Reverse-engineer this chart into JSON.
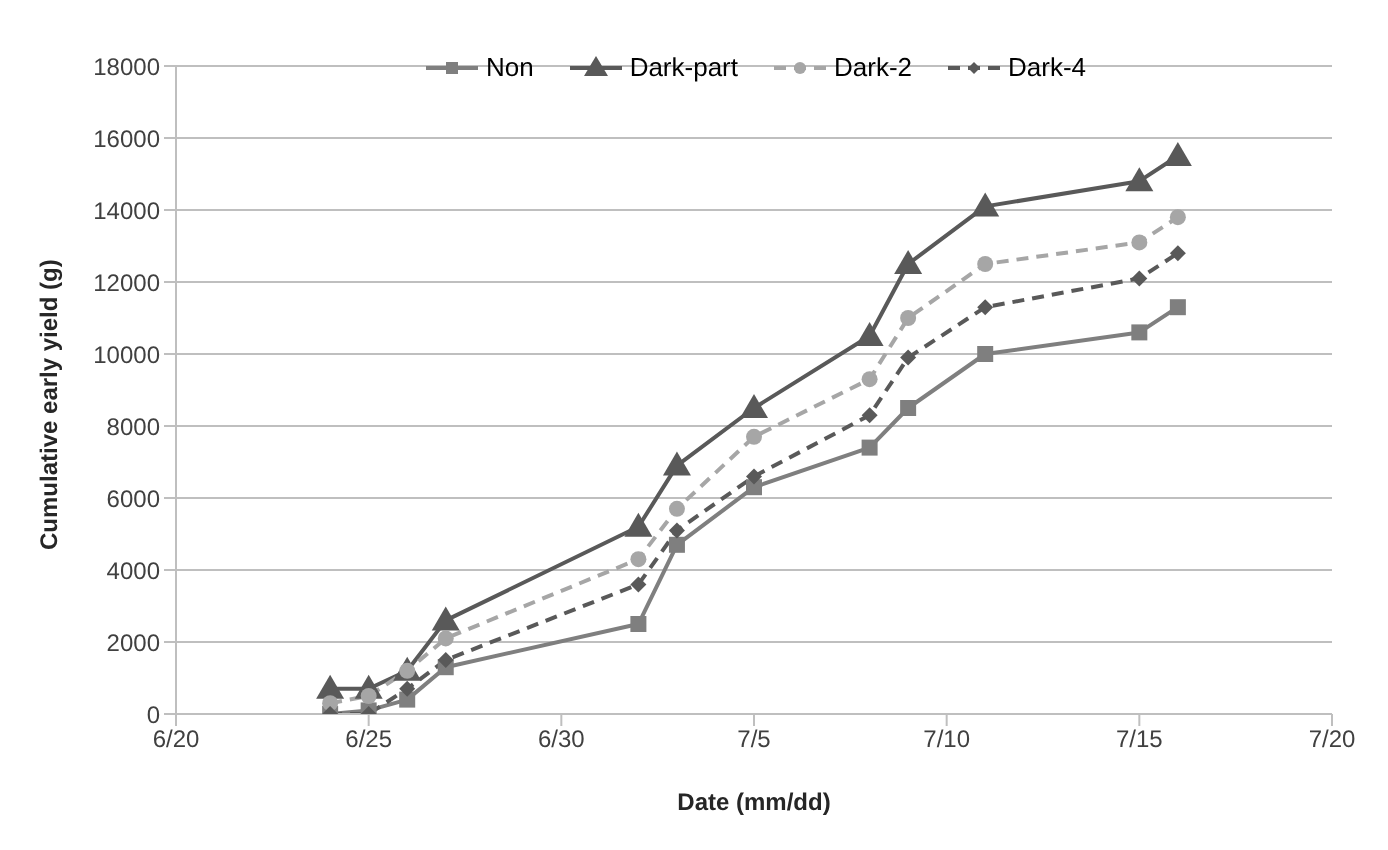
{
  "chart_data": {
    "type": "line",
    "xlabel": "Date (mm/dd)",
    "ylabel": "Cumulative early yield (g)",
    "x": [
      "--06-24",
      "--06-25",
      "--06-26",
      "--06-27",
      "--07-02",
      "--07-03",
      "--07-05",
      "--07-08",
      "--07-09",
      "--07-11",
      "--07-15",
      "--07-16"
    ],
    "series": [
      {
        "name": "Non",
        "color": "#7f7f7f",
        "marker": "square",
        "line_style": "solid",
        "values": [
          0,
          100,
          400,
          1300,
          2500,
          4700,
          6300,
          7400,
          8500,
          10000,
          10600,
          11300
        ]
      },
      {
        "name": "Dark-part",
        "color": "#595959",
        "marker": "triangle",
        "line_style": "solid",
        "values": [
          700,
          700,
          1200,
          2600,
          5200,
          6900,
          8500,
          10500,
          12500,
          14100,
          14800,
          15500
        ]
      },
      {
        "name": "Dark-2",
        "color": "#a6a6a6",
        "marker": "circle",
        "line_style": "dashed",
        "values": [
          300,
          500,
          1200,
          2100,
          4300,
          5700,
          7700,
          9300,
          11000,
          12500,
          13100,
          13800
        ]
      },
      {
        "name": "Dark-4",
        "color": "#595959",
        "marker": "diamond",
        "line_style": "dashed",
        "values": [
          0,
          0,
          700,
          1500,
          3600,
          5100,
          6600,
          8300,
          9900,
          11300,
          12100,
          12800
        ]
      }
    ],
    "xlim": [
      "--06-20",
      "--07-20"
    ],
    "xticks": [
      {
        "value": "--06-20",
        "label": "6/20"
      },
      {
        "value": "--06-25",
        "label": "6/25"
      },
      {
        "value": "--06-30",
        "label": "6/30"
      },
      {
        "value": "--07-05",
        "label": "7/5"
      },
      {
        "value": "--07-10",
        "label": "7/10"
      },
      {
        "value": "--07-15",
        "label": "7/15"
      },
      {
        "value": "--07-20",
        "label": "7/20"
      }
    ],
    "ylim": [
      0,
      18000
    ],
    "yticks": [
      0,
      2000,
      4000,
      6000,
      8000,
      10000,
      12000,
      14000,
      16000,
      18000
    ],
    "grid": "y",
    "legend": "top"
  }
}
